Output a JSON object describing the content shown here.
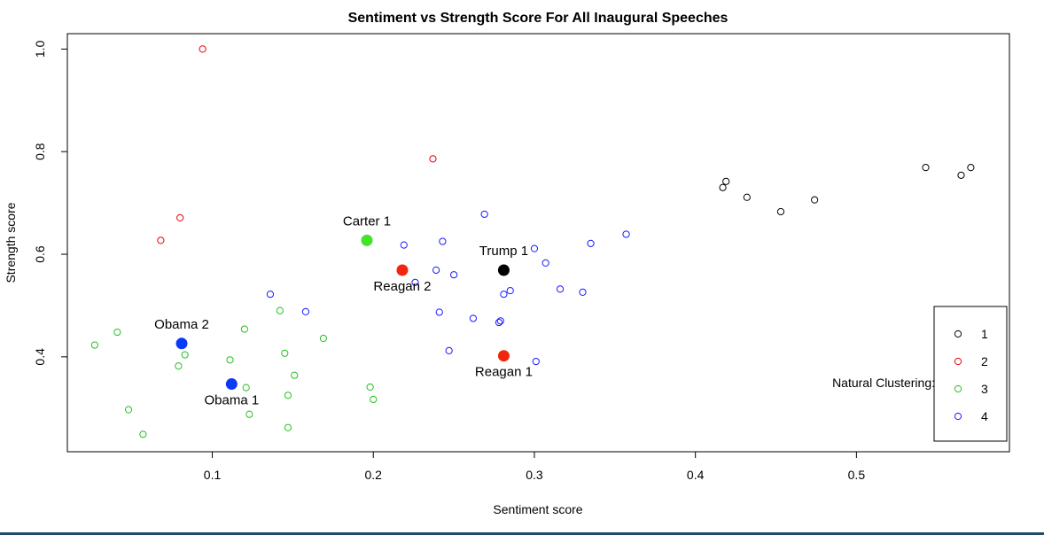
{
  "chart_data": {
    "type": "scatter",
    "title": "Sentiment vs Strength Score For All Inaugural Speeches",
    "xlabel": "Sentiment score",
    "ylabel": "Strength score",
    "xlim": [
      0.01,
      0.595
    ],
    "ylim": [
      0.215,
      1.03
    ],
    "xticks": [
      0.1,
      0.2,
      0.3,
      0.4,
      0.5
    ],
    "xtick_labels": [
      "0.1",
      "0.2",
      "0.3",
      "0.4",
      "0.5"
    ],
    "yticks": [
      0.4,
      0.6,
      0.8,
      1.0
    ],
    "ytick_labels": [
      "0.4",
      "0.6",
      "0.8",
      "1.0"
    ],
    "grid": false,
    "legend": {
      "title": "Natural Clustering:",
      "placement": "bottom-right",
      "entries": [
        {
          "label": "1",
          "color": "#000000"
        },
        {
          "label": "2",
          "color": "#e8000b"
        },
        {
          "label": "3",
          "color": "#22c21f"
        },
        {
          "label": "4",
          "color": "#1a1aff"
        }
      ]
    },
    "series": [
      {
        "name": "1",
        "color": "#000000",
        "points": [
          [
            0.417,
            0.73
          ],
          [
            0.419,
            0.742
          ],
          [
            0.432,
            0.711
          ],
          [
            0.453,
            0.683
          ],
          [
            0.474,
            0.706
          ],
          [
            0.543,
            0.769
          ],
          [
            0.565,
            0.754
          ],
          [
            0.571,
            0.769
          ]
        ]
      },
      {
        "name": "2",
        "color": "#e8000b",
        "points": [
          [
            0.094,
            1.0
          ],
          [
            0.237,
            0.786
          ],
          [
            0.08,
            0.671
          ],
          [
            0.068,
            0.627
          ]
        ]
      },
      {
        "name": "3",
        "color": "#22c21f",
        "points": [
          [
            0.027,
            0.423
          ],
          [
            0.041,
            0.448
          ],
          [
            0.048,
            0.297
          ],
          [
            0.057,
            0.249
          ],
          [
            0.079,
            0.382
          ],
          [
            0.083,
            0.404
          ],
          [
            0.111,
            0.394
          ],
          [
            0.12,
            0.454
          ],
          [
            0.121,
            0.34
          ],
          [
            0.123,
            0.288
          ],
          [
            0.142,
            0.49
          ],
          [
            0.145,
            0.407
          ],
          [
            0.147,
            0.325
          ],
          [
            0.147,
            0.262
          ],
          [
            0.151,
            0.364
          ],
          [
            0.169,
            0.436
          ],
          [
            0.198,
            0.341
          ],
          [
            0.2,
            0.317
          ]
        ]
      },
      {
        "name": "4",
        "color": "#1a1aff",
        "points": [
          [
            0.136,
            0.522
          ],
          [
            0.158,
            0.488
          ],
          [
            0.219,
            0.618
          ],
          [
            0.226,
            0.545
          ],
          [
            0.239,
            0.569
          ],
          [
            0.241,
            0.487
          ],
          [
            0.243,
            0.625
          ],
          [
            0.247,
            0.412
          ],
          [
            0.25,
            0.56
          ],
          [
            0.262,
            0.475
          ],
          [
            0.269,
            0.678
          ],
          [
            0.278,
            0.467
          ],
          [
            0.279,
            0.47
          ],
          [
            0.281,
            0.522
          ],
          [
            0.285,
            0.529
          ],
          [
            0.3,
            0.611
          ],
          [
            0.301,
            0.391
          ],
          [
            0.307,
            0.583
          ],
          [
            0.316,
            0.532
          ],
          [
            0.33,
            0.526
          ],
          [
            0.335,
            0.621
          ],
          [
            0.357,
            0.639
          ]
        ]
      }
    ],
    "highlighted": [
      {
        "label": "Carter 1",
        "x": 0.196,
        "y": 0.627,
        "color": "#44e32a",
        "label_pos": "above"
      },
      {
        "label": "Reagan 2",
        "x": 0.218,
        "y": 0.569,
        "color": "#f2260e",
        "label_pos": "below"
      },
      {
        "label": "Trump 1",
        "x": 0.281,
        "y": 0.569,
        "color": "#000000",
        "label_pos": "above"
      },
      {
        "label": "Reagan 1",
        "x": 0.281,
        "y": 0.402,
        "color": "#f2260e",
        "label_pos": "below"
      },
      {
        "label": "Obama 2",
        "x": 0.081,
        "y": 0.426,
        "color": "#0a3af5",
        "label_pos": "above"
      },
      {
        "label": "Obama 1",
        "x": 0.112,
        "y": 0.347,
        "color": "#0a3af5",
        "label_pos": "below"
      }
    ]
  }
}
